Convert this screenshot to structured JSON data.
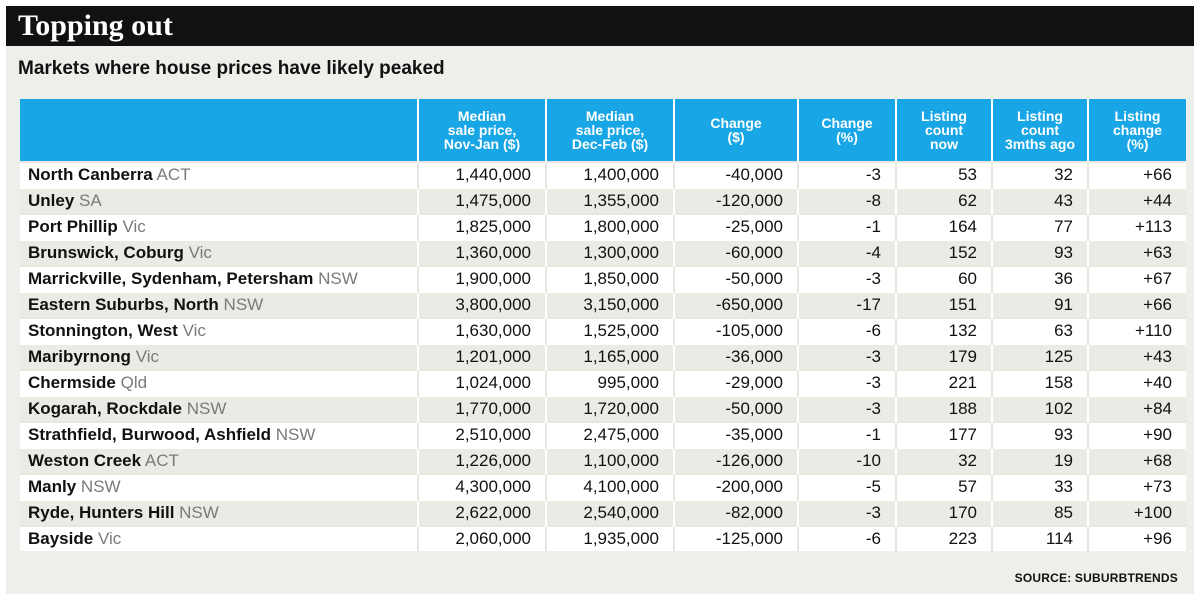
{
  "header": {
    "title": "Topping out",
    "subtitle": "Markets where house prices have likely peaked"
  },
  "colors": {
    "title_bar": "#111111",
    "header_fill": "#19a6e6",
    "state_text": "#7a7a7a",
    "background": "#ecefea"
  },
  "chart_data": {
    "type": "table",
    "columns": [
      "",
      "Median sale price, Nov-Jan ($)",
      "Median sale price, Dec-Feb ($)",
      "Change ($)",
      "Change (%)",
      "Listing count now",
      "Listing count 3mths ago",
      "Listing change (%)"
    ],
    "rows": [
      {
        "suburb": "North Canberra",
        "state": "ACT",
        "values": [
          "1,440,000",
          "1,400,000",
          "-40,000",
          "-3",
          "53",
          "32",
          "+66"
        ]
      },
      {
        "suburb": "Unley",
        "state": "SA",
        "values": [
          "1,475,000",
          "1,355,000",
          "-120,000",
          "-8",
          "62",
          "43",
          "+44"
        ]
      },
      {
        "suburb": "Port Phillip",
        "state": "Vic",
        "values": [
          "1,825,000",
          "1,800,000",
          "-25,000",
          "-1",
          "164",
          "77",
          "+113"
        ]
      },
      {
        "suburb": "Brunswick, Coburg",
        "state": "Vic",
        "values": [
          "1,360,000",
          "1,300,000",
          "-60,000",
          "-4",
          "152",
          "93",
          "+63"
        ]
      },
      {
        "suburb": "Marrickville, Sydenham, Petersham",
        "state": "NSW",
        "values": [
          "1,900,000",
          "1,850,000",
          "-50,000",
          "-3",
          "60",
          "36",
          "+67"
        ]
      },
      {
        "suburb": "Eastern Suburbs, North",
        "state": "NSW",
        "values": [
          "3,800,000",
          "3,150,000",
          "-650,000",
          "-17",
          "151",
          "91",
          "+66"
        ]
      },
      {
        "suburb": "Stonnington, West",
        "state": "Vic",
        "values": [
          "1,630,000",
          "1,525,000",
          "-105,000",
          "-6",
          "132",
          "63",
          "+110"
        ]
      },
      {
        "suburb": "Maribyrnong",
        "state": "Vic",
        "values": [
          "1,201,000",
          "1,165,000",
          "-36,000",
          "-3",
          "179",
          "125",
          "+43"
        ]
      },
      {
        "suburb": "Chermside",
        "state": "Qld",
        "values": [
          "1,024,000",
          "995,000",
          "-29,000",
          "-3",
          "221",
          "158",
          "+40"
        ]
      },
      {
        "suburb": "Kogarah, Rockdale",
        "state": "NSW",
        "values": [
          "1,770,000",
          "1,720,000",
          "-50,000",
          "-3",
          "188",
          "102",
          "+84"
        ]
      },
      {
        "suburb": "Strathfield, Burwood, Ashfield",
        "state": "NSW",
        "values": [
          "2,510,000",
          "2,475,000",
          "-35,000",
          "-1",
          "177",
          "93",
          "+90"
        ]
      },
      {
        "suburb": "Weston Creek",
        "state": "ACT",
        "values": [
          "1,226,000",
          "1,100,000",
          "-126,000",
          "-10",
          "32",
          "19",
          "+68"
        ]
      },
      {
        "suburb": "Manly",
        "state": "NSW",
        "values": [
          "4,300,000",
          "4,100,000",
          "-200,000",
          "-5",
          "57",
          "33",
          "+73"
        ]
      },
      {
        "suburb": "Ryde, Hunters Hill",
        "state": "NSW",
        "values": [
          "2,622,000",
          "2,540,000",
          "-82,000",
          "-3",
          "170",
          "85",
          "+100"
        ]
      },
      {
        "suburb": "Bayside",
        "state": "Vic",
        "values": [
          "2,060,000",
          "1,935,000",
          "-125,000",
          "-6",
          "223",
          "114",
          "+96"
        ]
      }
    ]
  },
  "footer": {
    "source": "SOURCE: SUBURBTRENDS"
  }
}
